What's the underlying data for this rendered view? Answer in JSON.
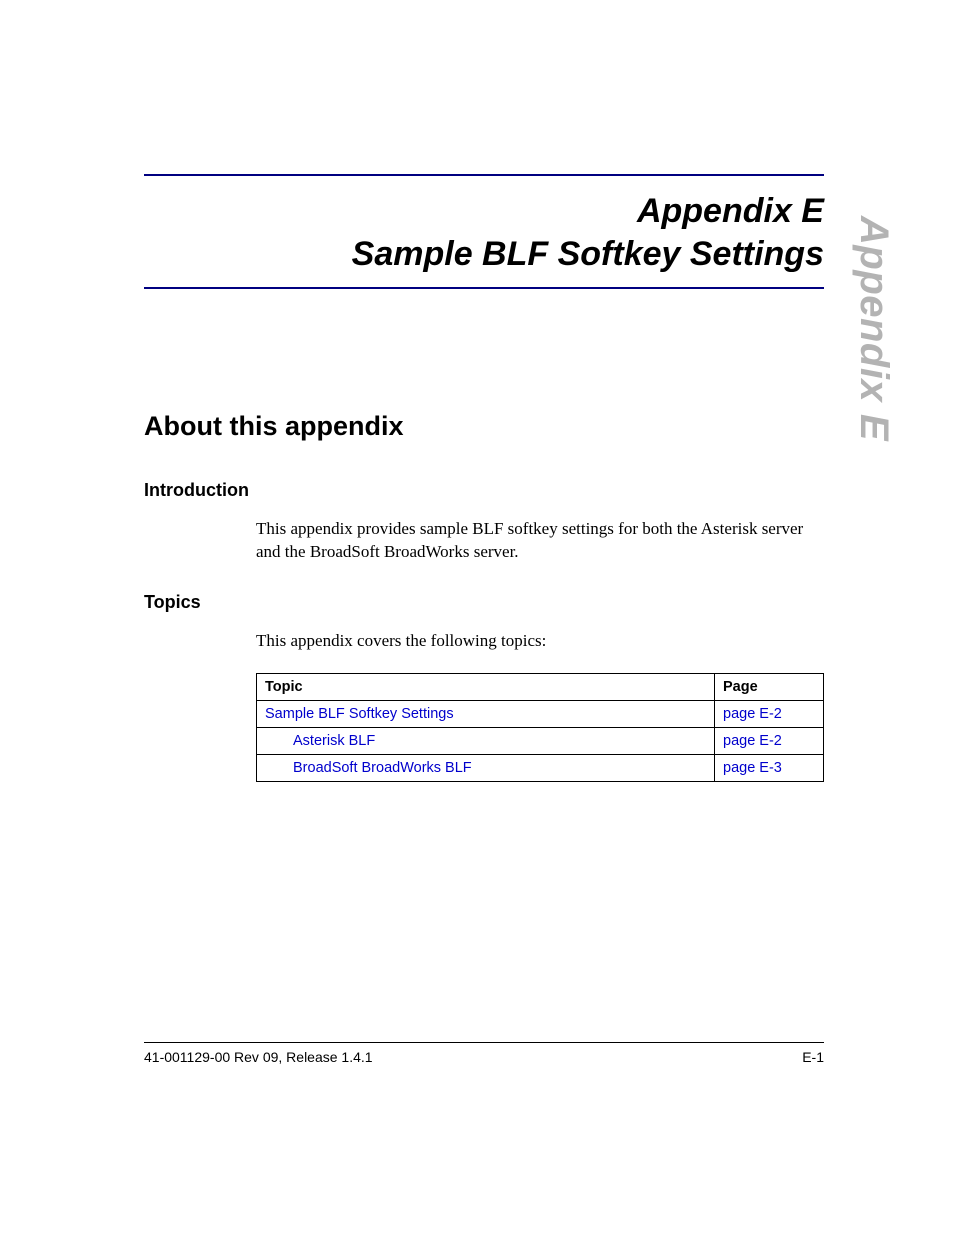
{
  "side_tab": "Appendix E",
  "title": {
    "line1": "Appendix E",
    "line2": "Sample BLF Softkey Settings"
  },
  "sections": {
    "about_heading": "About this appendix",
    "intro_heading": "Introduction",
    "intro_body": "This appendix provides sample BLF softkey settings for both the Asterisk server and the BroadSoft BroadWorks server.",
    "topics_heading": "Topics",
    "topics_body": "This appendix covers the following topics:"
  },
  "table": {
    "header_topic": "Topic",
    "header_page": "Page",
    "rows": [
      {
        "topic": "Sample BLF Softkey Settings",
        "page": "page E-2",
        "indent": 0
      },
      {
        "topic": "Asterisk BLF",
        "page": "page E-2",
        "indent": 1
      },
      {
        "topic": "BroadSoft BroadWorks BLF",
        "page": "page E-3",
        "indent": 1
      }
    ]
  },
  "footer": {
    "left": "41-001129-00 Rev 09, Release 1.4.1",
    "right": "E-1"
  },
  "colors": {
    "rule": "#000080",
    "link": "#0000cc",
    "side_tab": "#b3b3b3",
    "text": "#000000",
    "background": "#ffffff"
  },
  "fonts": {
    "heading_family": "Arial",
    "body_family": "Times New Roman",
    "title_size_pt": 26,
    "h1_size_pt": 20,
    "h2_size_pt": 14,
    "body_size_pt": 13,
    "table_size_pt": 11,
    "footer_size_pt": 10.5
  }
}
